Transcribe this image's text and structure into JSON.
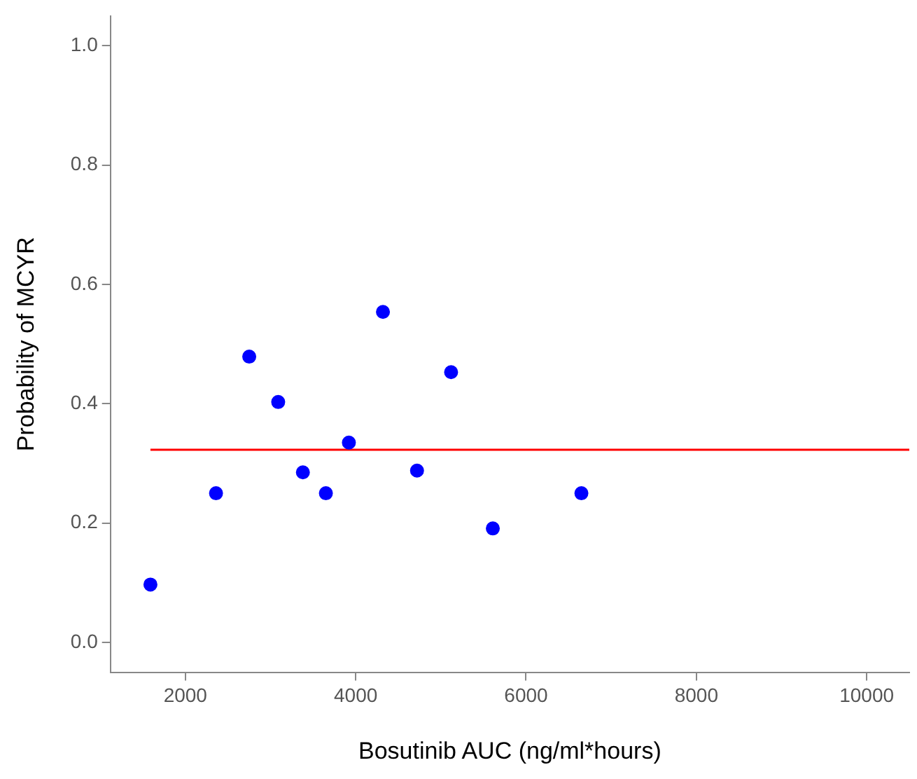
{
  "chart_data": {
    "type": "scatter",
    "xlabel": "Bosutinib AUC (ng/ml*hours)",
    "ylabel": "Probability of MCYR",
    "xlim": [
      1120,
      10500
    ],
    "xticks": [
      2000,
      4000,
      6000,
      8000,
      10000
    ],
    "ylim": [
      -0.05,
      1.05
    ],
    "yticks": [
      {
        "value": 0,
        "label": "0.0"
      },
      0.2,
      0.4,
      0.6,
      0.8,
      {
        "value": 1,
        "label": "1.0"
      }
    ],
    "grid": false,
    "legend": false,
    "series": [
      {
        "marker": "circle",
        "color": "#0000ff",
        "x": [
          1590,
          2360,
          2750,
          3090,
          3380,
          3650,
          3920,
          4320,
          4720,
          5120,
          5610,
          6650
        ],
        "values": [
          0.097,
          0.25,
          0.479,
          0.403,
          0.285,
          0.25,
          0.335,
          0.554,
          0.288,
          0.453,
          0.191,
          0.25
        ]
      },
      {
        "type": "line",
        "marker": "none",
        "color": "#ff0000",
        "x": [
          1590,
          10500
        ],
        "values": [
          0.323,
          0.323
        ]
      }
    ]
  }
}
